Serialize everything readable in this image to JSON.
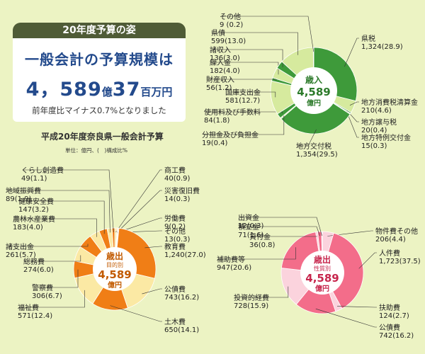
{
  "header": {
    "tab_label": "20年度予算の姿"
  },
  "summary": {
    "line1": "一般会計の予算規模は",
    "amount_oku_num": "4，589",
    "amount_oku_unit": "億",
    "amount_hyaku_num": "37",
    "amount_hyaku_unit": "百万円",
    "line3": "前年度比マイナス0.7%となりました"
  },
  "subtitle": "平成20年度奈良県一般会計予算",
  "unit_note": "単位：億円、(　)構成比%",
  "chart_data": [
    {
      "type": "pie",
      "center_label": {
        "line1": "歳入",
        "line2": "4,589",
        "line3": "億円"
      },
      "colors": {
        "main": "#3e9a3a",
        "light": "#d6ea9e",
        "hole": "#ffffff"
      },
      "start_deg": 0,
      "slices": [
        {
          "label": "県税",
          "value": 1324,
          "pct": 28.9,
          "display": "1,324(28.9)",
          "tone": "main"
        },
        {
          "label": "地方消費税清算金",
          "value": 210,
          "pct": 4.6,
          "display": "210(4.6)",
          "tone": "light"
        },
        {
          "label": "地方譲与税",
          "value": 20,
          "pct": 0.4,
          "display": "20(0.4)",
          "tone": "main"
        },
        {
          "label": "地方特例交付金",
          "value": 15,
          "pct": 0.3,
          "display": "15(0.3)",
          "tone": "light"
        },
        {
          "label": "地方交付税",
          "value": 1354,
          "pct": 29.5,
          "display": "1,354(29.5)",
          "tone": "main"
        },
        {
          "label": "分担金及び負担金",
          "value": 19,
          "pct": 0.4,
          "display": "19(0.4)",
          "tone": "light"
        },
        {
          "label": "使用料及び手数料",
          "value": 84,
          "pct": 1.8,
          "display": "84(1.8)",
          "tone": "main"
        },
        {
          "label": "国庫支出金",
          "value": 581,
          "pct": 12.7,
          "display": "581(12.7)",
          "tone": "light"
        },
        {
          "label": "財産収入",
          "value": 56,
          "pct": 1.2,
          "display": "56(1.2)",
          "tone": "main"
        },
        {
          "label": "繰入金",
          "value": 182,
          "pct": 4.0,
          "display": "182(4.0)",
          "tone": "light"
        },
        {
          "label": "諸収入",
          "value": 136,
          "pct": 3.0,
          "display": "136(3.0)",
          "tone": "main"
        },
        {
          "label": "県債",
          "value": 599,
          "pct": 13.0,
          "display": "599(13.0)",
          "tone": "light"
        },
        {
          "label": "その他",
          "value": 9,
          "pct": 0.2,
          "display": "9 (0.2)",
          "tone": "main"
        }
      ]
    },
    {
      "type": "pie",
      "center_label": {
        "line1": "歳出",
        "line2": "目的別",
        "line3": "4,589",
        "line4": "億円"
      },
      "colors": {
        "main": "#f07e16",
        "light": "#fbe9a4",
        "hole": "#ffffff"
      },
      "start_deg": 0,
      "slices": [
        {
          "label": "商工費",
          "value": 40,
          "pct": 0.9,
          "display": "40(0.9)",
          "tone": "light"
        },
        {
          "label": "災害復旧費",
          "value": 14,
          "pct": 0.3,
          "display": "14(0.3)",
          "tone": "main"
        },
        {
          "label": "労働費",
          "value": 9,
          "pct": 0.2,
          "display": "9(0.2)",
          "tone": "light"
        },
        {
          "label": "その他",
          "value": 13,
          "pct": 0.3,
          "display": "13(0.3)",
          "tone": "main"
        },
        {
          "label": "教育費",
          "value": 1240,
          "pct": 27.0,
          "display": "1,240(27.0)",
          "tone": "main"
        },
        {
          "label": "公債費",
          "value": 743,
          "pct": 16.2,
          "display": "743(16.2)",
          "tone": "light"
        },
        {
          "label": "土木費",
          "value": 650,
          "pct": 14.1,
          "display": "650(14.1)",
          "tone": "main"
        },
        {
          "label": "福祉費",
          "value": 571,
          "pct": 12.4,
          "display": "571(12.4)",
          "tone": "light"
        },
        {
          "label": "警察費",
          "value": 306,
          "pct": 6.7,
          "display": "306(6.7)",
          "tone": "main"
        },
        {
          "label": "総務費",
          "value": 274,
          "pct": 6.0,
          "display": "274(6.0)",
          "tone": "light"
        },
        {
          "label": "諸支出金",
          "value": 261,
          "pct": 5.7,
          "display": "261(5.7)",
          "tone": "main"
        },
        {
          "label": "農林水産業費",
          "value": 183,
          "pct": 4.0,
          "display": "183(4.0)",
          "tone": "light"
        },
        {
          "label": "健康安全費",
          "value": 147,
          "pct": 3.2,
          "display": "147(3.2)",
          "tone": "main"
        },
        {
          "label": "地域振興費",
          "value": 89,
          "pct": 1.9,
          "display": "89(1.9)",
          "tone": "light"
        },
        {
          "label": "くらし創造費",
          "value": 49,
          "pct": 1.1,
          "display": "49(1.1)",
          "tone": "main"
        }
      ]
    },
    {
      "type": "pie",
      "center_label": {
        "line1": "歳出",
        "line2": "性質別",
        "line3": "4,589",
        "line4": "億円"
      },
      "colors": {
        "main": "#f36d8a",
        "light": "#fbd3dd",
        "hole": "#ffffff"
      },
      "start_deg": 0,
      "slices": [
        {
          "label": "物件費その他",
          "value": 206,
          "pct": 4.4,
          "display": "206(4.4)",
          "tone": "light"
        },
        {
          "label": "人件費",
          "value": 1723,
          "pct": 37.5,
          "display": "1,723(37.5)",
          "tone": "main"
        },
        {
          "label": "扶助費",
          "value": 124,
          "pct": 2.7,
          "display": "124(2.7)",
          "tone": "light"
        },
        {
          "label": "公債費",
          "value": 742,
          "pct": 16.2,
          "display": "742(16.2)",
          "tone": "main"
        },
        {
          "label": "投資的経費",
          "value": 728,
          "pct": 15.9,
          "display": "728(15.9)",
          "tone": "light"
        },
        {
          "label": "補助費等",
          "value": 947,
          "pct": 20.6,
          "display": "947(20.6)",
          "tone": "main"
        },
        {
          "label": "貸付金",
          "value": 36,
          "pct": 0.8,
          "display": "36(0.8)",
          "tone": "light"
        },
        {
          "label": "積立金",
          "value": 71,
          "pct": 1.6,
          "display": "71(1.6)",
          "tone": "main"
        },
        {
          "label": "出資金",
          "value": 12,
          "pct": 0.3,
          "display": "12(0.3)",
          "tone": "light"
        }
      ]
    }
  ]
}
